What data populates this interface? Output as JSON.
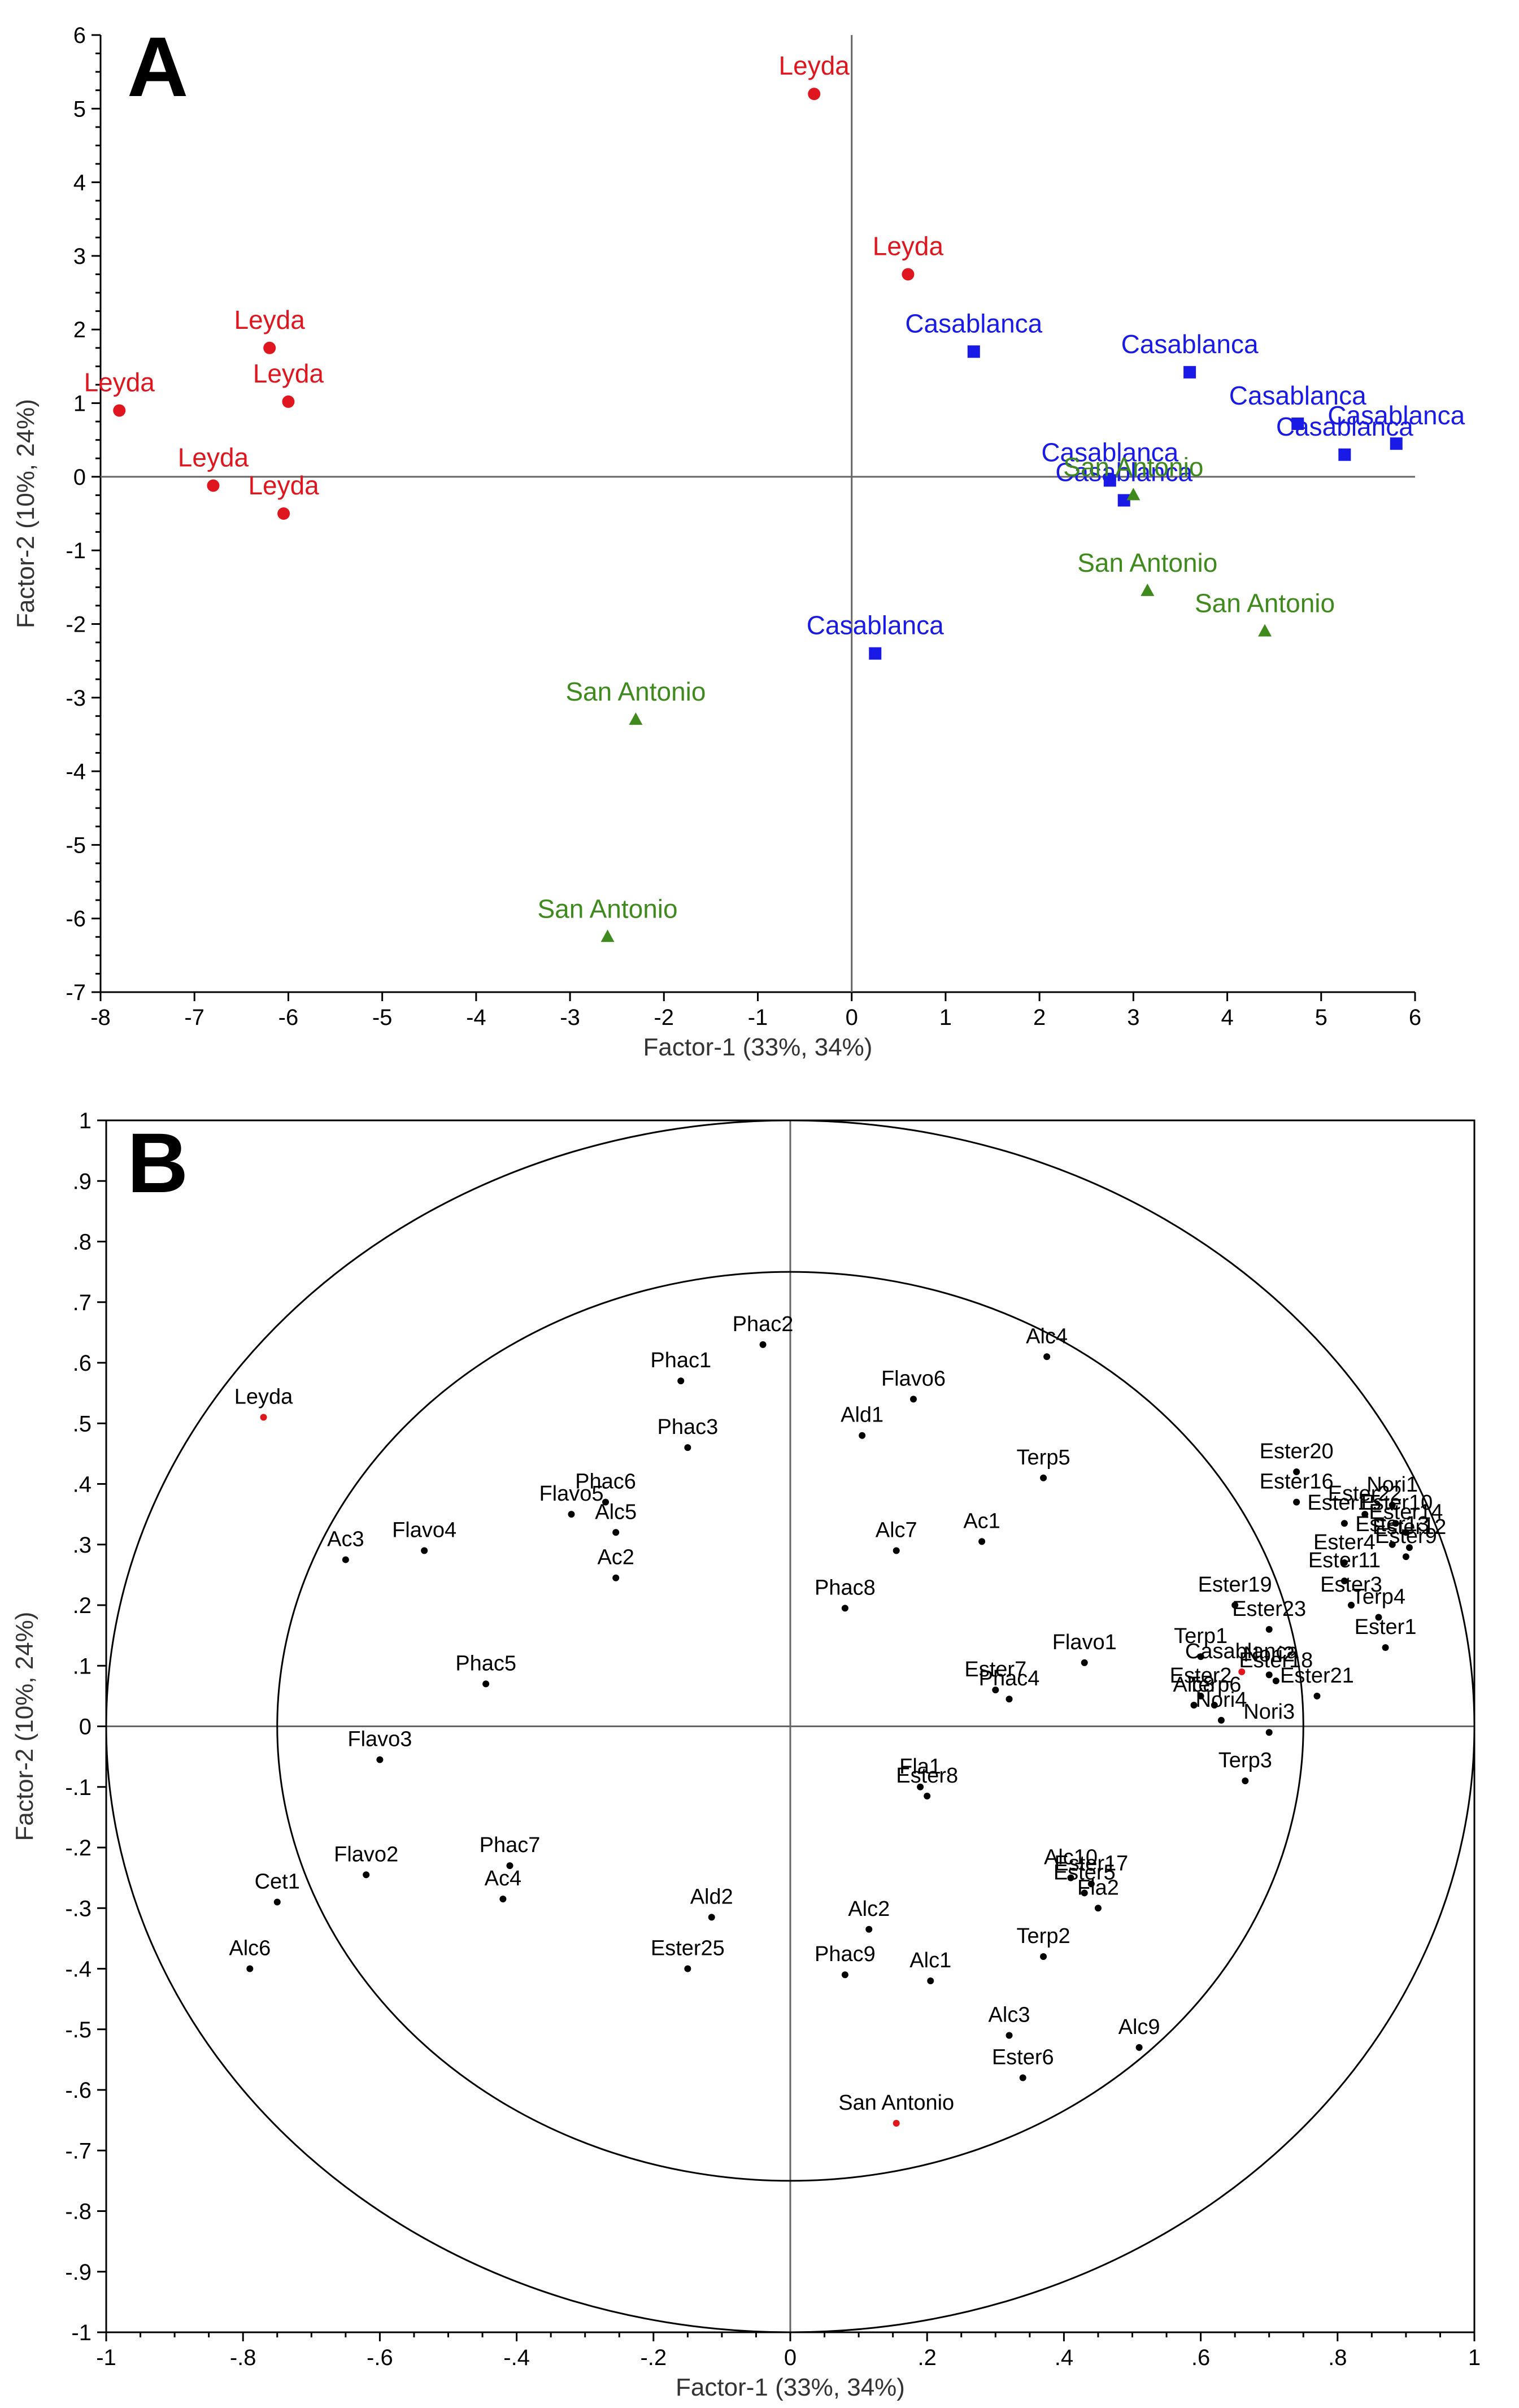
{
  "chart_data": [
    {
      "panel": "A",
      "type": "scatter",
      "xlabel": "Factor-1 (33%, 34%)",
      "ylabel": "Factor-2 (10%, 24%)",
      "xlim": [
        -8,
        6
      ],
      "ylim": [
        -7,
        6
      ],
      "xticks": [
        -8,
        -7,
        -6,
        -5,
        -4,
        -3,
        -2,
        -1,
        0,
        1,
        2,
        3,
        4,
        5,
        6
      ],
      "yticks": [
        -7,
        -6,
        -5,
        -4,
        -3,
        -2,
        -1,
        0,
        1,
        2,
        3,
        4,
        5,
        6
      ],
      "colors": {
        "Leyda": "#e0161e",
        "Casablanca": "#1a1ae6",
        "San Antonio": "#3e8a1d"
      },
      "markers": {
        "Leyda": "circle",
        "Casablanca": "square",
        "San Antonio": "triangle"
      },
      "points": [
        {
          "label": "Leyda",
          "group": "Leyda",
          "x": -0.4,
          "y": 5.2
        },
        {
          "label": "Leyda",
          "group": "Leyda",
          "x": 0.6,
          "y": 2.75
        },
        {
          "label": "Leyda",
          "group": "Leyda",
          "x": -6.2,
          "y": 1.75
        },
        {
          "label": "Leyda",
          "group": "Leyda",
          "x": -6.0,
          "y": 1.02
        },
        {
          "label": "Leyda",
          "group": "Leyda",
          "x": -7.8,
          "y": 0.9
        },
        {
          "label": "Leyda",
          "group": "Leyda",
          "x": -6.8,
          "y": -0.12
        },
        {
          "label": "Leyda",
          "group": "Leyda",
          "x": -6.05,
          "y": -0.5
        },
        {
          "label": "Casablanca",
          "group": "Casablanca",
          "x": 1.3,
          "y": 1.7
        },
        {
          "label": "Casablanca",
          "group": "Casablanca",
          "x": 3.6,
          "y": 1.42
        },
        {
          "label": "Casablanca",
          "group": "Casablanca",
          "x": 4.75,
          "y": 0.72
        },
        {
          "label": "Casablanca",
          "group": "Casablanca",
          "x": 5.25,
          "y": 0.3
        },
        {
          "label": "Casablanca",
          "group": "Casablanca",
          "x": 5.8,
          "y": 0.45
        },
        {
          "label": "Casablanca",
          "group": "Casablanca",
          "x": 2.75,
          "y": -0.05
        },
        {
          "label": "Casablanca",
          "group": "Casablanca",
          "x": 2.9,
          "y": -0.32
        },
        {
          "label": "Casablanca",
          "group": "Casablanca",
          "x": 0.25,
          "y": -2.4
        },
        {
          "label": "San Antonio",
          "group": "San Antonio",
          "x": 3.0,
          "y": -0.25
        },
        {
          "label": "San Antonio",
          "group": "San Antonio",
          "x": 3.15,
          "y": -1.55
        },
        {
          "label": "San Antonio",
          "group": "San Antonio",
          "x": 4.4,
          "y": -2.1
        },
        {
          "label": "San Antonio",
          "group": "San Antonio",
          "x": -2.3,
          "y": -3.3
        },
        {
          "label": "San Antonio",
          "group": "San Antonio",
          "x": -2.6,
          "y": -6.25
        }
      ]
    },
    {
      "panel": "B",
      "type": "scatter",
      "xlabel": "Factor-1 (33%, 34%)",
      "ylabel": "Factor-2 (10%, 24%)",
      "xlim": [
        -1,
        1
      ],
      "ylim": [
        -1,
        1
      ],
      "xticks": [
        -1,
        -0.8,
        -0.6,
        -0.4,
        -0.2,
        0,
        0.2,
        0.4,
        0.6,
        0.8,
        1
      ],
      "yticks": [
        -1,
        -0.9,
        -0.8,
        -0.7,
        -0.6,
        -0.5,
        -0.4,
        -0.3,
        -0.2,
        -0.1,
        0,
        0.1,
        0.2,
        0.3,
        0.4,
        0.5,
        0.6,
        0.7,
        0.8,
        0.9,
        1
      ],
      "circles": [
        1.0,
        0.75
      ],
      "colors": {
        "variable": "#000000",
        "sample": "#e0161e"
      },
      "points": [
        {
          "label": "Leyda",
          "x": -0.77,
          "y": 0.51,
          "kind": "sample"
        },
        {
          "label": "Casablanca",
          "x": 0.66,
          "y": 0.09,
          "kind": "sample"
        },
        {
          "label": "San Antonio",
          "x": 0.155,
          "y": -0.655,
          "kind": "sample"
        },
        {
          "label": "Phac2",
          "x": -0.04,
          "y": 0.63,
          "kind": "variable"
        },
        {
          "label": "Phac1",
          "x": -0.16,
          "y": 0.57,
          "kind": "variable"
        },
        {
          "label": "Phac3",
          "x": -0.15,
          "y": 0.46,
          "kind": "variable"
        },
        {
          "label": "Phac6",
          "x": -0.27,
          "y": 0.37,
          "kind": "variable"
        },
        {
          "label": "Flavo5",
          "x": -0.32,
          "y": 0.35,
          "kind": "variable"
        },
        {
          "label": "Alc5",
          "x": -0.255,
          "y": 0.32,
          "kind": "variable"
        },
        {
          "label": "Ac2",
          "x": -0.255,
          "y": 0.245,
          "kind": "variable"
        },
        {
          "label": "Flavo4",
          "x": -0.535,
          "y": 0.29,
          "kind": "variable"
        },
        {
          "label": "Ac3",
          "x": -0.65,
          "y": 0.275,
          "kind": "variable"
        },
        {
          "label": "Phac5",
          "x": -0.445,
          "y": 0.07,
          "kind": "variable"
        },
        {
          "label": "Flavo3",
          "x": -0.6,
          "y": -0.055,
          "kind": "variable"
        },
        {
          "label": "Flavo2",
          "x": -0.62,
          "y": -0.245,
          "kind": "variable"
        },
        {
          "label": "Phac7",
          "x": -0.41,
          "y": -0.23,
          "kind": "variable"
        },
        {
          "label": "Ac4",
          "x": -0.42,
          "y": -0.285,
          "kind": "variable"
        },
        {
          "label": "Cet1",
          "x": -0.75,
          "y": -0.29,
          "kind": "variable"
        },
        {
          "label": "Alc6",
          "x": -0.79,
          "y": -0.4,
          "kind": "variable"
        },
        {
          "label": "Ald2",
          "x": -0.115,
          "y": -0.315,
          "kind": "variable"
        },
        {
          "label": "Ester25",
          "x": -0.15,
          "y": -0.4,
          "kind": "variable"
        },
        {
          "label": "Alc4",
          "x": 0.375,
          "y": 0.61,
          "kind": "variable"
        },
        {
          "label": "Flavo6",
          "x": 0.18,
          "y": 0.54,
          "kind": "variable"
        },
        {
          "label": "Ald1",
          "x": 0.105,
          "y": 0.48,
          "kind": "variable"
        },
        {
          "label": "Terp5",
          "x": 0.37,
          "y": 0.41,
          "kind": "variable"
        },
        {
          "label": "Ac1",
          "x": 0.28,
          "y": 0.305,
          "kind": "variable"
        },
        {
          "label": "Alc7",
          "x": 0.155,
          "y": 0.29,
          "kind": "variable"
        },
        {
          "label": "Phac8",
          "x": 0.08,
          "y": 0.195,
          "kind": "variable"
        },
        {
          "label": "Ester7",
          "x": 0.3,
          "y": 0.06,
          "kind": "variable"
        },
        {
          "label": "Phac4",
          "x": 0.32,
          "y": 0.045,
          "kind": "variable"
        },
        {
          "label": "Flavo1",
          "x": 0.43,
          "y": 0.105,
          "kind": "variable"
        },
        {
          "label": "Fla1",
          "x": 0.19,
          "y": -0.1,
          "kind": "variable"
        },
        {
          "label": "Ester8",
          "x": 0.2,
          "y": -0.115,
          "kind": "variable"
        },
        {
          "label": "Alc10",
          "x": 0.41,
          "y": -0.25,
          "kind": "variable"
        },
        {
          "label": "Ester17",
          "x": 0.44,
          "y": -0.26,
          "kind": "variable"
        },
        {
          "label": "Ester5",
          "x": 0.43,
          "y": -0.275,
          "kind": "variable"
        },
        {
          "label": "Fla2",
          "x": 0.45,
          "y": -0.3,
          "kind": "variable"
        },
        {
          "label": "Terp2",
          "x": 0.37,
          "y": -0.38,
          "kind": "variable"
        },
        {
          "label": "Alc2",
          "x": 0.115,
          "y": -0.335,
          "kind": "variable"
        },
        {
          "label": "Phac9",
          "x": 0.08,
          "y": -0.41,
          "kind": "variable"
        },
        {
          "label": "Alc1",
          "x": 0.205,
          "y": -0.42,
          "kind": "variable"
        },
        {
          "label": "Alc3",
          "x": 0.32,
          "y": -0.51,
          "kind": "variable"
        },
        {
          "label": "Ester6",
          "x": 0.34,
          "y": -0.58,
          "kind": "variable"
        },
        {
          "label": "Alc9",
          "x": 0.51,
          "y": -0.53,
          "kind": "variable"
        },
        {
          "label": "Ester20",
          "x": 0.74,
          "y": 0.42,
          "kind": "variable"
        },
        {
          "label": "Ester16",
          "x": 0.74,
          "y": 0.37,
          "kind": "variable"
        },
        {
          "label": "Nori1",
          "x": 0.88,
          "y": 0.365,
          "kind": "variable"
        },
        {
          "label": "Ester22",
          "x": 0.84,
          "y": 0.35,
          "kind": "variable"
        },
        {
          "label": "Ester10",
          "x": 0.885,
          "y": 0.335,
          "kind": "variable"
        },
        {
          "label": "Ester14",
          "x": 0.9,
          "y": 0.32,
          "kind": "variable"
        },
        {
          "label": "Ester13",
          "x": 0.88,
          "y": 0.3,
          "kind": "variable"
        },
        {
          "label": "Ester12",
          "x": 0.905,
          "y": 0.295,
          "kind": "variable"
        },
        {
          "label": "Ester9",
          "x": 0.9,
          "y": 0.28,
          "kind": "variable"
        },
        {
          "label": "Ester15",
          "x": 0.81,
          "y": 0.335,
          "kind": "variable"
        },
        {
          "label": "Ester4",
          "x": 0.81,
          "y": 0.27,
          "kind": "variable"
        },
        {
          "label": "Ester11",
          "x": 0.81,
          "y": 0.24,
          "kind": "variable"
        },
        {
          "label": "Ester3",
          "x": 0.82,
          "y": 0.2,
          "kind": "variable"
        },
        {
          "label": "Ester19",
          "x": 0.65,
          "y": 0.2,
          "kind": "variable"
        },
        {
          "label": "Ester23",
          "x": 0.7,
          "y": 0.16,
          "kind": "variable"
        },
        {
          "label": "Terp4",
          "x": 0.86,
          "y": 0.18,
          "kind": "variable"
        },
        {
          "label": "Ester1",
          "x": 0.87,
          "y": 0.13,
          "kind": "variable"
        },
        {
          "label": "Terp1",
          "x": 0.6,
          "y": 0.115,
          "kind": "variable"
        },
        {
          "label": "Nori2",
          "x": 0.7,
          "y": 0.085,
          "kind": "variable"
        },
        {
          "label": "Ester18",
          "x": 0.71,
          "y": 0.075,
          "kind": "variable"
        },
        {
          "label": "Ester21",
          "x": 0.77,
          "y": 0.05,
          "kind": "variable"
        },
        {
          "label": "Ester2",
          "x": 0.6,
          "y": 0.05,
          "kind": "variable"
        },
        {
          "label": "Terp6",
          "x": 0.62,
          "y": 0.035,
          "kind": "variable"
        },
        {
          "label": "Alc8",
          "x": 0.59,
          "y": 0.035,
          "kind": "variable"
        },
        {
          "label": "Nori4",
          "x": 0.63,
          "y": 0.01,
          "kind": "variable"
        },
        {
          "label": "Nori3",
          "x": 0.7,
          "y": -0.01,
          "kind": "variable"
        },
        {
          "label": "Terp3",
          "x": 0.665,
          "y": -0.09,
          "kind": "variable"
        }
      ]
    }
  ],
  "panels": {
    "A": {
      "letter": "A"
    },
    "B": {
      "letter": "B"
    }
  }
}
